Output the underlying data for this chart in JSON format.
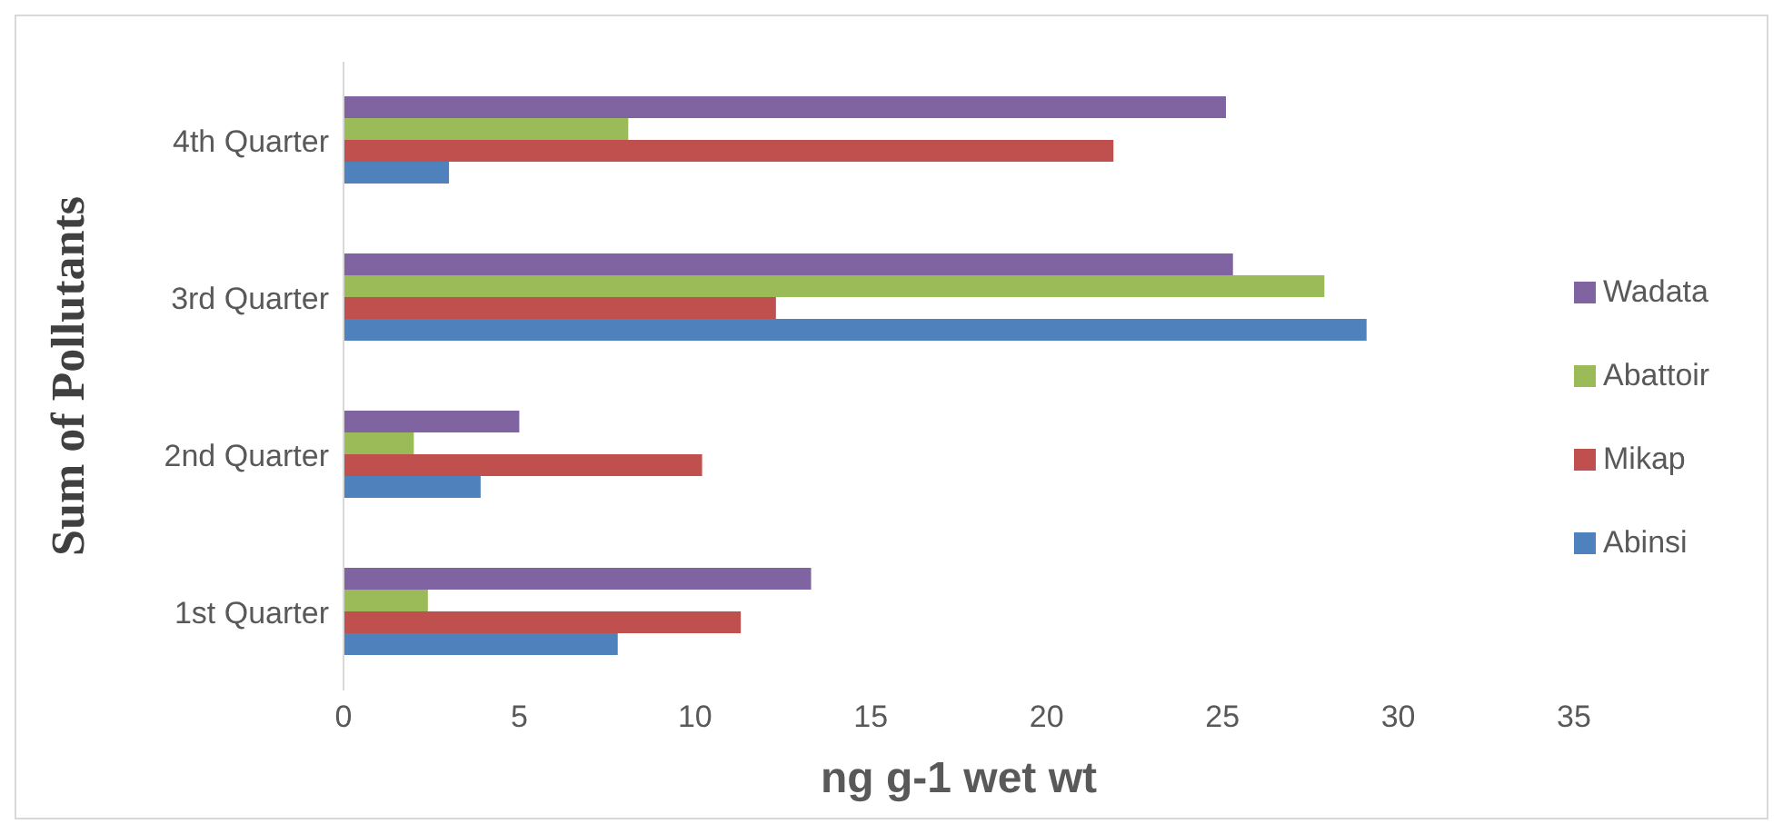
{
  "chart_data": {
    "type": "bar",
    "orientation": "horizontal",
    "xlabel": "ng g-1 wet wt",
    "ylabel": "Sum of Pollutants",
    "categories": [
      "4th Quarter",
      "3rd Quarter",
      "2nd Quarter",
      "1st Quarter"
    ],
    "series": [
      {
        "name": "Wadata",
        "color": "#8064a2",
        "values": [
          25.1,
          25.3,
          5.0,
          13.3
        ]
      },
      {
        "name": "Abattoir",
        "color": "#9bbb59",
        "values": [
          8.1,
          27.9,
          2.0,
          2.4
        ]
      },
      {
        "name": "Mikap",
        "color": "#c0504d",
        "values": [
          21.9,
          12.3,
          10.2,
          11.3
        ]
      },
      {
        "name": "Abinsi",
        "color": "#4f81bd",
        "values": [
          3.0,
          29.1,
          3.9,
          7.8
        ]
      }
    ],
    "xlim": [
      0,
      35
    ],
    "xticks": [
      0,
      5,
      10,
      15,
      20,
      25,
      30,
      35
    ],
    "grid": false,
    "legend": "right"
  }
}
